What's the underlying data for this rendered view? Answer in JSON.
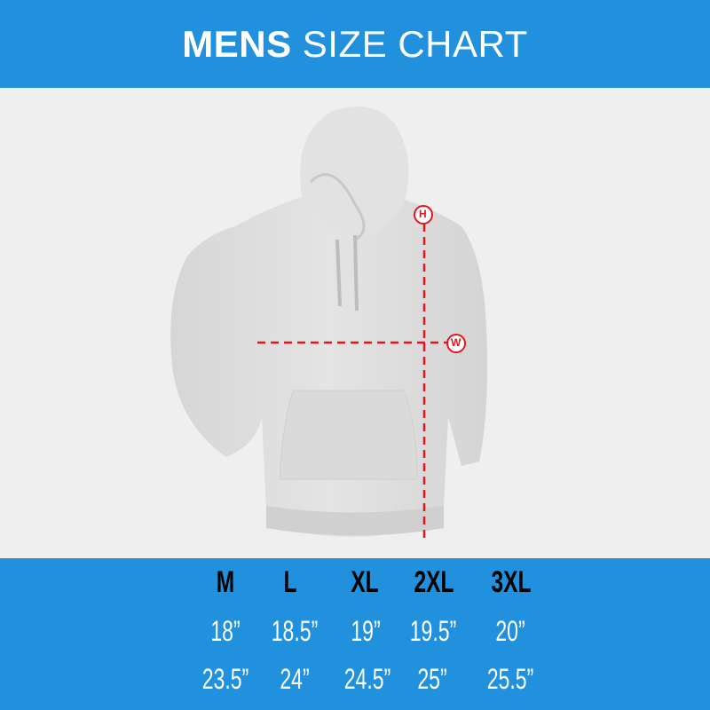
{
  "header": {
    "title_bold": "MENS",
    "title_light": "SIZE CHART"
  },
  "diagram": {
    "height_marker": "H",
    "width_marker": "W",
    "marker_color": "#e8141c"
  },
  "colors": {
    "brand": "#2190dd"
  },
  "size_table": {
    "sizes": [
      "M",
      "L",
      "XL",
      "2XL",
      "3XL"
    ],
    "width_row": [
      "18”",
      "18.5”",
      "19”",
      "19.5”",
      "20”"
    ],
    "height_row": [
      "23.5”",
      "24”",
      "24.5”",
      "25”",
      "25.5”"
    ]
  }
}
